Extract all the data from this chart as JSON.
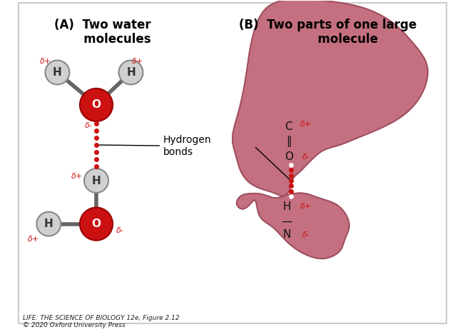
{
  "bg_color": "#ffffff",
  "border_color": "#cccccc",
  "title_A": "(A)  Two water\n      molecules",
  "title_B": "(B)  Two parts of one large\n        molecule",
  "atom_O_color": "#cc1111",
  "atom_O_edge": "#990000",
  "atom_H_color": "#d0d0d0",
  "atom_H_edge": "#888888",
  "bond_color": "#666666",
  "hbond_color": "#cc1111",
  "delta_color": "#cc1111",
  "label_color": "#000000",
  "caption_text": "LIFE: THE SCIENCE OF BIOLOGY 12e, Figure 2.12\n© 2020 Oxford University Press",
  "blob_color": "#c47080",
  "blob_edge_color": "#a05060",
  "hydrogen_bond_label": "Hydrogen\nbonds"
}
